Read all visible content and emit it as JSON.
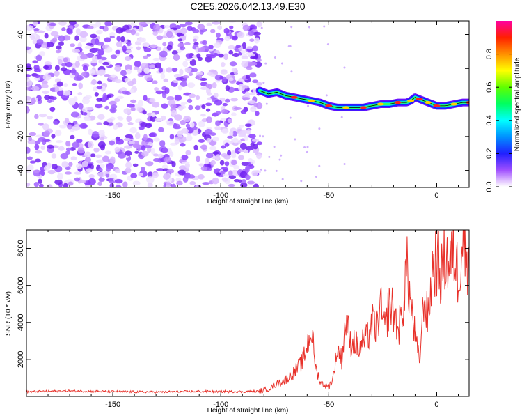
{
  "chart_data": [
    {
      "type": "heatmap",
      "title": "C2E5.2026.042.13.49.E30",
      "xlabel": "Height of straight line (km)",
      "ylabel": "Frequency (Hz)",
      "xlim": [
        -190,
        15
      ],
      "ylim": [
        -50,
        48
      ],
      "xticks": [
        -150,
        -100,
        -50,
        0
      ],
      "yticks": [
        -40,
        -20,
        0,
        20,
        40
      ],
      "noise_region_x": [
        -190,
        -82
      ],
      "signal_track": {
        "x": [
          -82,
          -78,
          -74,
          -70,
          -66,
          -62,
          -58,
          -54,
          -50,
          -46,
          -42,
          -38,
          -34,
          -30,
          -26,
          -22,
          -18,
          -14,
          -12,
          -10,
          -8,
          -6,
          -4,
          -2,
          0,
          4,
          8,
          12,
          15
        ],
        "y": [
          7,
          5,
          6,
          4,
          3,
          2,
          1,
          0,
          -2,
          -3,
          -3,
          -3,
          -3,
          -2,
          -1,
          -1,
          0,
          0,
          1,
          3,
          2,
          1,
          0,
          -1,
          -2,
          -2,
          -1,
          0,
          0
        ]
      },
      "colorbar": {
        "label": "Normalized spectral amplitude",
        "ticks": [
          "0.0",
          "0.2",
          "0.4",
          "0.6",
          "0.8"
        ],
        "range": [
          0,
          1
        ]
      }
    },
    {
      "type": "line",
      "xlabel": "Height of straight line (km)",
      "ylabel": "SNR (10 * v/v)",
      "xlim": [
        -190,
        15
      ],
      "ylim": [
        0,
        9000
      ],
      "xticks": [
        -150,
        -100,
        -50,
        0
      ],
      "yticks": [
        2000,
        4000,
        6000,
        8000
      ],
      "series": [
        {
          "name": "SNR",
          "color": "#e8312a",
          "x": [
            -190,
            -170,
            -150,
            -130,
            -110,
            -90,
            -82,
            -78,
            -74,
            -70,
            -66,
            -62,
            -58,
            -56,
            -54,
            -52,
            -50,
            -48,
            -46,
            -44,
            -42,
            -40,
            -38,
            -36,
            -34,
            -32,
            -30,
            -28,
            -26,
            -24,
            -22,
            -20,
            -18,
            -16,
            -14,
            -12,
            -10,
            -8,
            -6,
            -4,
            -2,
            0,
            2,
            4,
            6,
            8,
            10,
            12,
            14,
            15
          ],
          "y": [
            250,
            300,
            260,
            240,
            270,
            260,
            280,
            400,
            700,
            900,
            1300,
            1900,
            3600,
            1500,
            800,
            600,
            500,
            1000,
            2600,
            2000,
            4200,
            2900,
            3000,
            2500,
            3000,
            3200,
            4000,
            3700,
            4800,
            3500,
            5000,
            4600,
            3600,
            4300,
            7100,
            5000,
            3200,
            1800,
            5400,
            4200,
            6900,
            7400,
            6500,
            7600,
            7200,
            7800,
            6500,
            8800,
            7500,
            7800
          ]
        }
      ]
    }
  ]
}
